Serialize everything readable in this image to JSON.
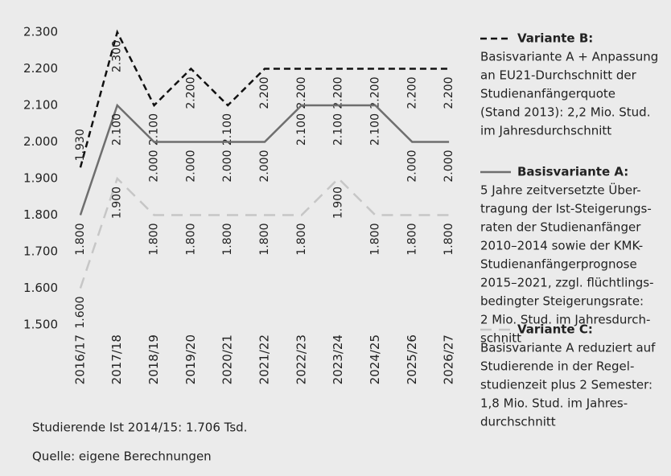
{
  "chart_data": {
    "type": "line",
    "categories": [
      "2016/17",
      "2017/18",
      "2018/19",
      "2019/20",
      "2020/21",
      "2021/22",
      "2022/23",
      "2023/24",
      "2024/25",
      "2025/26",
      "2026/27"
    ],
    "series": [
      {
        "name": "Variante B:",
        "color": "#111111",
        "dash": "8 5",
        "description": [
          "Basisvariante A + Anpassung",
          "an EU21-Durchschnitt der",
          "Studienanfängerquote",
          "(Stand 2013): 2,2 Mio. Stud.",
          "im Jahresdurchschnitt"
        ],
        "values": [
          1930,
          2300,
          2100,
          2200,
          2100,
          2200,
          2200,
          2200,
          2200,
          2200,
          2200
        ],
        "value_labels": [
          "1.930",
          "2.300",
          "2.100",
          "2.200",
          "2.100",
          "2.200",
          "2.200",
          "2.200",
          "2.200",
          "2.200",
          "2.200"
        ]
      },
      {
        "name": "Basisvariante A:",
        "color": "#6e6e6e",
        "dash": "",
        "description": [
          "5 Jahre zeitversetzte Über-",
          "tragung der Ist-Steigerungs-",
          "raten der Studienanfänger",
          "2010–2014 sowie der KMK-",
          "Studienanfängerprognose",
          "2015–2021, zzgl. flüchtlings-",
          "bedingter Steigerungsrate:",
          "2 Mio. Stud. im Jahresdurch-",
          "schnitt"
        ],
        "values": [
          1800,
          2100,
          2000,
          2000,
          2000,
          2000,
          2100,
          2100,
          2100,
          2000,
          2000
        ],
        "value_labels": [
          "1.800",
          "2.100",
          "2.000",
          "2.000",
          "2.000",
          "2.000",
          "2.100",
          "2.100",
          "2.100",
          "2.000",
          "2.000"
        ]
      },
      {
        "name": "Variante C:",
        "color": "#c6c6c6",
        "dash": "14 9",
        "description": [
          "Basisvariante A reduziert auf",
          "Studierende in der Regel-",
          "studienzeit plus 2 Semester:",
          "1,8 Mio. Stud. im Jahres-",
          "durchschnitt"
        ],
        "values": [
          1600,
          1900,
          1800,
          1800,
          1800,
          1800,
          1800,
          1900,
          1800,
          1800,
          1800
        ],
        "value_labels": [
          "1.600",
          "1.900",
          "1.800",
          "1.800",
          "1.800",
          "1.800",
          "1.800",
          "1.900",
          "1.800",
          "1.800",
          "1.800"
        ]
      }
    ],
    "ylim": [
      1500,
      2300
    ],
    "yticks": [
      {
        "value": 1500,
        "label": "1.500"
      },
      {
        "value": 1600,
        "label": "1.600"
      },
      {
        "value": 1700,
        "label": "1.700"
      },
      {
        "value": 1800,
        "label": "1.800"
      },
      {
        "value": 1900,
        "label": "1.900"
      },
      {
        "value": 2000,
        "label": "2.000"
      },
      {
        "value": 2100,
        "label": "2.100"
      },
      {
        "value": 2200,
        "label": "2.200"
      },
      {
        "value": 2300,
        "label": "2.300"
      }
    ],
    "notes": [
      "Studierende Ist 2014/15: 1.706 Tsd.",
      "Quelle: eigene Berechnungen"
    ]
  }
}
